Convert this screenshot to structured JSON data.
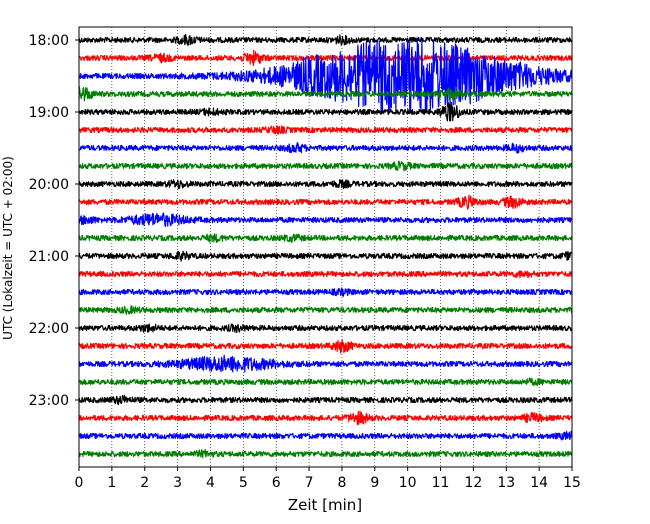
{
  "chart_data": {
    "type": "line",
    "title": "",
    "xlabel": "Zeit  [min]",
    "ylabel": "UTC (Lokalzeit = UTC + 02:00)",
    "xlim": [
      0,
      15
    ],
    "x_ticks": [
      0,
      1,
      2,
      3,
      4,
      5,
      6,
      7,
      8,
      9,
      10,
      11,
      12,
      13,
      14,
      15
    ],
    "y_tick_labels": [
      "18:00",
      "19:00",
      "20:00",
      "21:00",
      "22:00",
      "23:00"
    ],
    "grid": "vertical dotted lines at each minute",
    "legend": "none",
    "trace_interval_min": 15,
    "color_cycle": [
      "#000000",
      "#ff0000",
      "#0000ff",
      "#008000"
    ],
    "traces": [
      {
        "start": "18:00",
        "color": "#000000",
        "events": [
          {
            "t": 3.3,
            "amp": 1.3
          },
          {
            "t": 8.0,
            "amp": 1.0
          }
        ]
      },
      {
        "start": "18:15",
        "color": "#ff0000",
        "events": [
          {
            "t": 5.3,
            "amp": 2.0
          },
          {
            "t": 2.5,
            "amp": 1.0
          }
        ]
      },
      {
        "start": "18:30",
        "color": "#0000ff",
        "events": [
          {
            "t": 7.0,
            "amp": 1.3
          },
          {
            "t": 10.0,
            "amp": 14.0,
            "width": 4.5
          }
        ]
      },
      {
        "start": "18:45",
        "color": "#008000",
        "events": [
          {
            "t": 0.1,
            "amp": 2.2
          },
          {
            "t": 11.3,
            "amp": 1.5
          }
        ]
      },
      {
        "start": "19:00",
        "color": "#000000",
        "events": [
          {
            "t": 11.3,
            "amp": 3.0
          },
          {
            "t": 4.0,
            "amp": 0.8
          }
        ]
      },
      {
        "start": "19:15",
        "color": "#ff0000",
        "events": [
          {
            "t": 6.0,
            "amp": 0.8
          }
        ]
      },
      {
        "start": "19:30",
        "color": "#0000ff",
        "events": [
          {
            "t": 6.6,
            "amp": 1.2
          },
          {
            "t": 13.3,
            "amp": 1.0
          }
        ]
      },
      {
        "start": "19:45",
        "color": "#008000",
        "events": [
          {
            "t": 9.8,
            "amp": 1.0
          }
        ]
      },
      {
        "start": "20:00",
        "color": "#000000",
        "events": [
          {
            "t": 3.0,
            "amp": 1.0
          },
          {
            "t": 8.0,
            "amp": 0.8
          }
        ]
      },
      {
        "start": "20:15",
        "color": "#ff0000",
        "events": [
          {
            "t": 11.8,
            "amp": 1.7
          },
          {
            "t": 13.2,
            "amp": 1.6
          }
        ]
      },
      {
        "start": "20:30",
        "color": "#0000ff",
        "events": [
          {
            "t": 2.4,
            "amp": 1.8,
            "width": 1.2
          },
          {
            "t": 0.2,
            "amp": 1.0
          }
        ]
      },
      {
        "start": "20:45",
        "color": "#008000",
        "events": [
          {
            "t": 4.1,
            "amp": 0.8
          },
          {
            "t": 6.5,
            "amp": 0.7
          }
        ]
      },
      {
        "start": "21:00",
        "color": "#000000",
        "events": [
          {
            "t": 3.1,
            "amp": 1.0
          },
          {
            "t": 15.0,
            "amp": 1.1
          }
        ]
      },
      {
        "start": "21:15",
        "color": "#ff0000",
        "events": [
          {
            "t": 13.5,
            "amp": 0.6
          }
        ]
      },
      {
        "start": "21:30",
        "color": "#0000ff",
        "events": [
          {
            "t": 8.0,
            "amp": 0.6
          }
        ]
      },
      {
        "start": "21:45",
        "color": "#008000",
        "events": [
          {
            "t": 1.5,
            "amp": 0.7
          }
        ]
      },
      {
        "start": "22:00",
        "color": "#000000",
        "events": [
          {
            "t": 2.1,
            "amp": 0.9
          },
          {
            "t": 4.8,
            "amp": 0.8
          }
        ]
      },
      {
        "start": "22:15",
        "color": "#ff0000",
        "events": [
          {
            "t": 8.0,
            "amp": 1.8
          }
        ]
      },
      {
        "start": "22:30",
        "color": "#0000ff",
        "events": [
          {
            "t": 4.5,
            "amp": 2.4,
            "width": 2.0
          }
        ]
      },
      {
        "start": "22:45",
        "color": "#008000",
        "events": [
          {
            "t": 13.8,
            "amp": 0.5
          }
        ]
      },
      {
        "start": "23:00",
        "color": "#000000",
        "events": [
          {
            "t": 1.3,
            "amp": 1.0
          }
        ]
      },
      {
        "start": "23:15",
        "color": "#ff0000",
        "events": [
          {
            "t": 8.5,
            "amp": 1.8
          },
          {
            "t": 13.8,
            "amp": 1.2
          }
        ]
      },
      {
        "start": "23:30",
        "color": "#0000ff",
        "events": [
          {
            "t": 14.9,
            "amp": 0.9
          }
        ]
      },
      {
        "start": "23:45",
        "color": "#008000",
        "events": [
          {
            "t": 3.8,
            "amp": 0.7
          }
        ]
      }
    ]
  }
}
